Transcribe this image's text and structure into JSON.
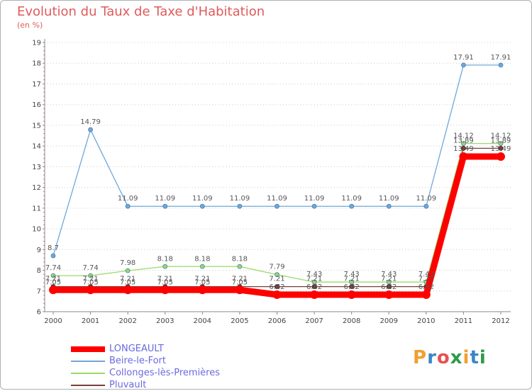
{
  "chart_data": {
    "type": "line",
    "title": "Evolution du Taux de Taxe d'Habitation",
    "subtitle": "(en %)",
    "xlabel": "",
    "ylabel": "",
    "ylim": [
      6,
      19
    ],
    "yticks": [
      "6",
      "7",
      "8",
      "9",
      "10",
      "11",
      "12",
      "13",
      "14",
      "15",
      "16",
      "17",
      "18",
      "19"
    ],
    "categories": [
      "2000",
      "2001",
      "2002",
      "2003",
      "2004",
      "2005",
      "2006",
      "2007",
      "2008",
      "2009",
      "2010",
      "2011",
      "2012"
    ],
    "series": [
      {
        "name": "LONGEAULT",
        "color": "#ff0000",
        "values": [
          7.05,
          7.05,
          7.05,
          7.05,
          7.05,
          7.05,
          6.82,
          6.82,
          6.82,
          6.82,
          6.82,
          13.49,
          13.49
        ],
        "labels": [
          "7.05",
          "7.05",
          "7.05",
          "7.05",
          "7.05",
          "7.05",
          "6.82",
          "6.82",
          "6.82",
          "6.82",
          "6.82",
          "13.49",
          "13.49"
        ]
      },
      {
        "name": "Beire-le-Fort",
        "color": "#6fa8d8",
        "values": [
          8.7,
          14.79,
          11.09,
          11.09,
          11.09,
          11.09,
          11.09,
          11.09,
          11.09,
          11.09,
          11.09,
          17.91,
          17.91
        ],
        "labels": [
          "8.7",
          "14.79",
          "11.09",
          "11.09",
          "11.09",
          "11.09",
          "11.09",
          "11.09",
          "11.09",
          "11.09",
          "11.09",
          "17.91",
          "17.91"
        ]
      },
      {
        "name": "Collonges-lès-Premières",
        "color": "#99d96a",
        "values": [
          7.74,
          7.74,
          7.98,
          8.18,
          8.18,
          8.18,
          7.79,
          7.43,
          7.43,
          7.43,
          7.43,
          14.12,
          14.12
        ],
        "labels": [
          "7.74",
          "7.74",
          "7.98",
          "8.18",
          "8.18",
          "8.18",
          "7.79",
          "7.43",
          "7.43",
          "7.43",
          "7.43",
          "14.12",
          "14.12"
        ]
      },
      {
        "name": "Pluvault",
        "color": "#7a3e3e",
        "values": [
          7.21,
          7.21,
          7.21,
          7.21,
          7.21,
          7.21,
          7.21,
          7.21,
          7.21,
          7.21,
          7.21,
          13.89,
          13.89
        ],
        "labels": [
          "7.21",
          "7.21",
          "7.21",
          "7.21",
          "7.21",
          "7.21",
          "7.21",
          "7.21",
          "7.21",
          "7.21",
          "7.21",
          "13.89",
          "13.89"
        ]
      }
    ]
  },
  "logo": {
    "text": "Proxiti",
    "colors": [
      "#f0a030",
      "#3a86c8",
      "#e85050",
      "#2f9a4a",
      "#f0a030",
      "#3a86c8",
      "#2f9a4a"
    ]
  }
}
